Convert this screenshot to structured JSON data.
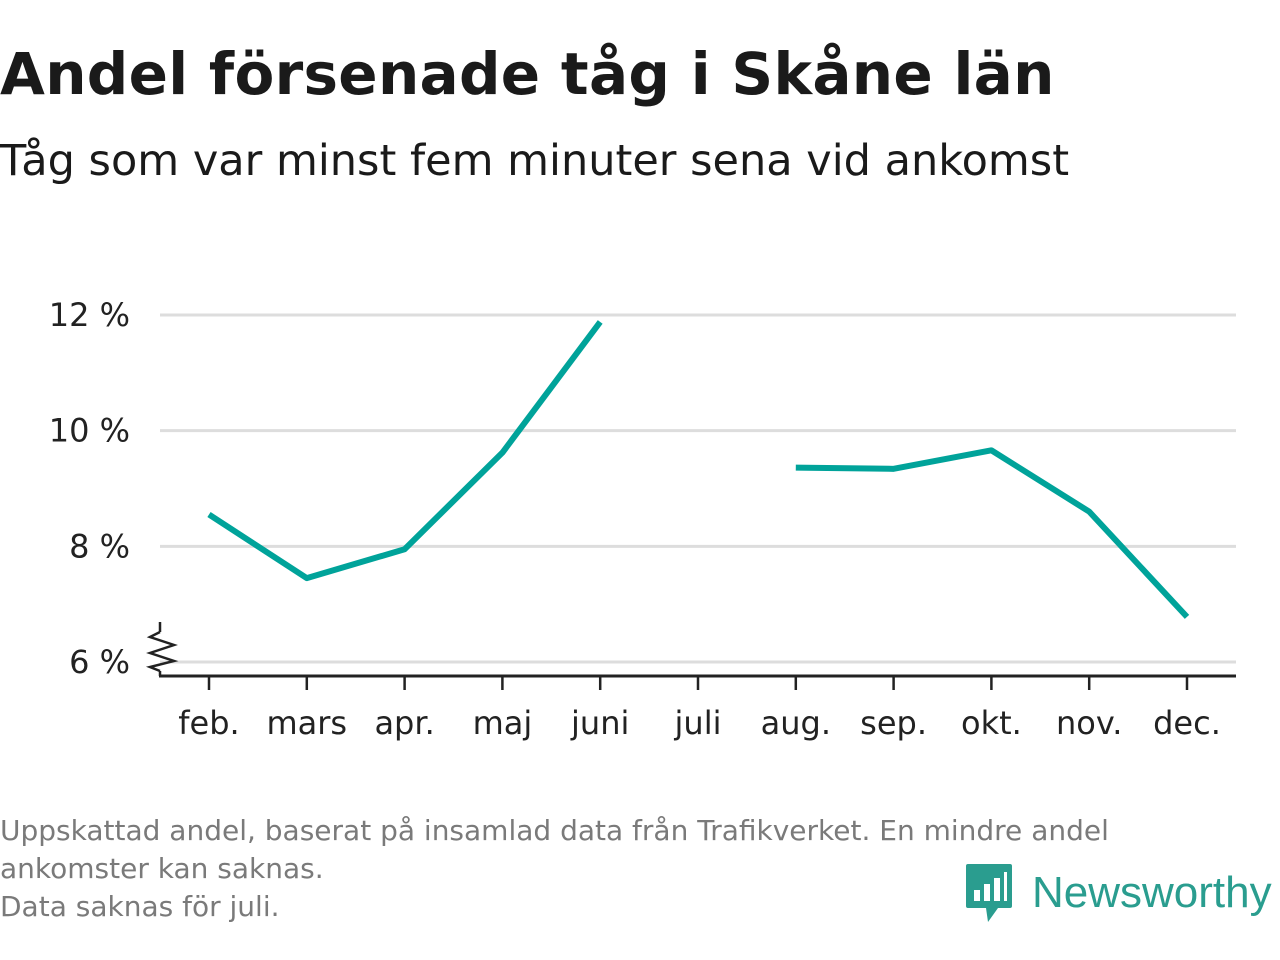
{
  "header": {
    "title": "Andel försenade tåg i Skåne län",
    "subtitle": "Tåg som var minst fem minuter sena vid ankomst"
  },
  "chart_data": {
    "type": "line",
    "title": "Andel försenade tåg i Skåne län",
    "subtitle": "Tåg som var minst fem minuter sena vid ankomst",
    "categories": [
      "feb.",
      "mars",
      "apr.",
      "maj",
      "juni",
      "juli",
      "aug.",
      "sep.",
      "okt.",
      "nov.",
      "dec."
    ],
    "series": [
      {
        "values": [
          8.55,
          7.45,
          7.95,
          9.62,
          11.88,
          null,
          9.36,
          9.34,
          9.66,
          8.6,
          6.78
        ]
      }
    ],
    "y_ticks": [
      6,
      8,
      10,
      12
    ],
    "y_tick_labels": [
      "6 %",
      "8 %",
      "10 %",
      "12 %"
    ],
    "ylim": [
      6,
      12.2
    ],
    "y_axis_break": true,
    "grid": true,
    "xlabel": "",
    "ylabel": "",
    "colors": {
      "line": "#00a39a",
      "grid": "#dddddd",
      "axis": "#222222"
    }
  },
  "footnote": {
    "lines": [
      "Uppskattad andel, baserat på insamlad data från Trafikverket. En mindre andel",
      "ankomster kan saknas.",
      "Data saknas för juli."
    ]
  },
  "logo": {
    "text": "Newsworthy",
    "icon": "newsworthy-chat-bars-icon",
    "color": "#2a9d8f"
  }
}
